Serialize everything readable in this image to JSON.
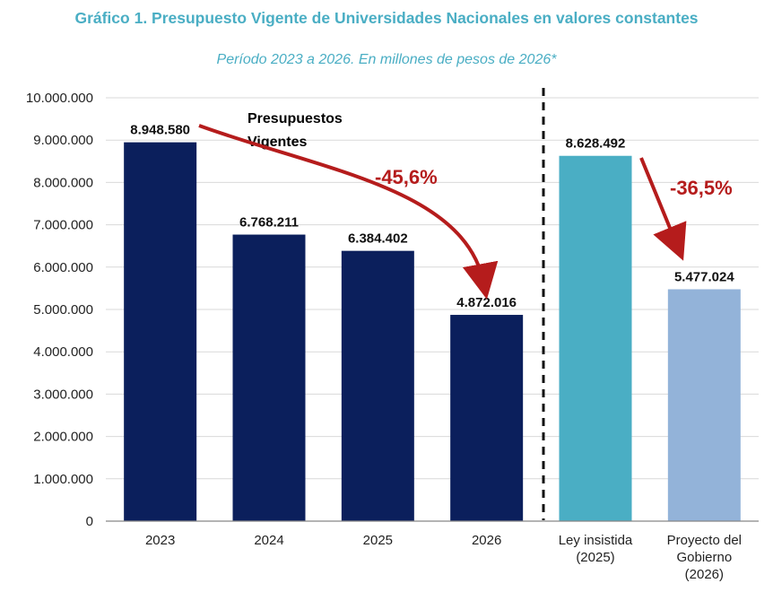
{
  "chart_data": {
    "type": "bar",
    "title": "Gráfico 1. Presupuesto Vigente de Universidades Nacionales en valores constantes",
    "subtitle": "Período 2023 a 2026. En millones de pesos de 2026*",
    "xlabel": "",
    "ylabel": "",
    "ylim": [
      0,
      10000000
    ],
    "yticks": [
      {
        "value": 0,
        "label": "0"
      },
      {
        "value": 1000000,
        "label": "1.000.000"
      },
      {
        "value": 2000000,
        "label": "2.000.000"
      },
      {
        "value": 3000000,
        "label": "3.000.000"
      },
      {
        "value": 4000000,
        "label": "4.000.000"
      },
      {
        "value": 5000000,
        "label": "5.000.000"
      },
      {
        "value": 6000000,
        "label": "6.000.000"
      },
      {
        "value": 7000000,
        "label": "7.000.000"
      },
      {
        "value": 8000000,
        "label": "8.000.000"
      },
      {
        "value": 9000000,
        "label": "9.000.000"
      },
      {
        "value": 10000000,
        "label": "10.000.000"
      }
    ],
    "grid": true,
    "bars": [
      {
        "category": [
          "2023"
        ],
        "value": 8948580,
        "label": "8.948.580",
        "color": "#0b1f5c"
      },
      {
        "category": [
          "2024"
        ],
        "value": 6768211,
        "label": "6.768.211",
        "color": "#0b1f5c"
      },
      {
        "category": [
          "2025"
        ],
        "value": 6384402,
        "label": "6.384.402",
        "color": "#0b1f5c"
      },
      {
        "category": [
          "2026"
        ],
        "value": 4872016,
        "label": "4.872.016",
        "color": "#0b1f5c"
      },
      {
        "category": [
          "Ley insistida",
          "(2025)"
        ],
        "value": 8628492,
        "label": "8.628.492",
        "color": "#4aaec4"
      },
      {
        "category": [
          "Proyecto del",
          "Gobierno",
          "(2026)"
        ],
        "value": 5477024,
        "label": "5.477.024",
        "color": "#93b3d9"
      }
    ],
    "annotations": {
      "group_label": [
        "Presupuestos",
        "Vigentes"
      ],
      "change_1": "-45,6%",
      "change_2": "-36,5%",
      "arrow_color": "#b51c1c"
    }
  }
}
